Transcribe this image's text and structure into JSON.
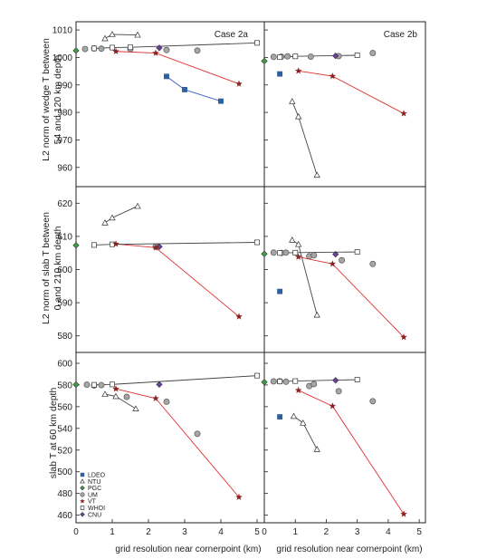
{
  "colors": {
    "LDEO": "#2f5f9e",
    "NTU": "#ffffff",
    "PGC": "#3f9e3f",
    "UM": "#a6a6a6",
    "VT": "#8a1f1f",
    "WHOI": "#ffffff",
    "CNU": "#6b3fa0",
    "line_LDEO": "#3b5fc0",
    "line_NTU": "#444444",
    "line_VT": "#e03030",
    "line_WHOI": "#444444",
    "line_CNU": "#444444"
  },
  "legend": [
    "LDEO",
    "NTU",
    "PGC",
    "UM",
    "VT",
    "WHOI",
    "CNU"
  ],
  "x_axis_label": "grid resolution near cornerpoint (km)",
  "x_ticks": [
    0,
    1,
    2,
    3,
    4,
    5
  ],
  "row_ylabels": [
    [
      "L2 norm of wedge T between",
      "54 and 120 km depth"
    ],
    [
      "L2 norm of slab T between",
      "0 and 210 km depth"
    ],
    [
      "slab T at 60 km depth"
    ]
  ],
  "columns": [
    "Case 2a",
    "Case 2b"
  ],
  "chart_data": [
    {
      "type": "scatter",
      "row": 0,
      "col": 0,
      "case": "Case 2a",
      "ylabel": "L2 norm of wedge T between 54 and 120 km depth",
      "xlim": [
        0,
        5.2
      ],
      "ylim": [
        953,
        1013
      ],
      "yticks": [
        960,
        970,
        980,
        990,
        1000,
        1010
      ],
      "series": [
        {
          "name": "LDEO",
          "marker": "square",
          "line": true,
          "points": [
            [
              2.5,
              993.1
            ],
            [
              3.0,
              988.3
            ],
            [
              4.0,
              984.1
            ]
          ]
        },
        {
          "name": "NTU",
          "marker": "triangle",
          "line": true,
          "points": [
            [
              0.8,
              1006.9
            ],
            [
              1.0,
              1008.4
            ],
            [
              1.7,
              1008.2
            ]
          ]
        },
        {
          "name": "PGC",
          "marker": "diamond",
          "line": false,
          "points": [
            [
              0.0,
              1002.5
            ]
          ]
        },
        {
          "name": "UM",
          "marker": "circle",
          "line": false,
          "points": [
            [
              0.25,
              1003.1
            ],
            [
              0.5,
              1003.3
            ],
            [
              0.7,
              1003.2
            ],
            [
              1.5,
              1003.1
            ],
            [
              2.5,
              1002.7
            ],
            [
              3.35,
              1002.5
            ]
          ]
        },
        {
          "name": "VT",
          "marker": "star",
          "line": true,
          "points": [
            [
              1.1,
              1002.2
            ],
            [
              2.2,
              1001.6
            ],
            [
              4.5,
              990.4
            ]
          ]
        },
        {
          "name": "WHOI",
          "marker": "square",
          "line": true,
          "points": [
            [
              0.5,
              1003.3
            ],
            [
              1.0,
              1003.6
            ],
            [
              1.5,
              1003.7
            ],
            [
              5.0,
              1005.3
            ]
          ]
        },
        {
          "name": "CNU",
          "marker": "diamond",
          "line": false,
          "points": [
            [
              2.3,
              1003.5
            ]
          ]
        }
      ]
    },
    {
      "type": "scatter",
      "row": 0,
      "col": 1,
      "case": "Case 2b",
      "ylabel": "L2 norm of wedge T between 54 and 120 km depth",
      "xlim": [
        0,
        5.2
      ],
      "ylim": [
        953,
        1013
      ],
      "yticks": [
        960,
        970,
        980,
        990,
        1000,
        1010
      ],
      "series": [
        {
          "name": "LDEO",
          "marker": "square",
          "line": false,
          "points": [
            [
              0.5,
              994.0
            ]
          ]
        },
        {
          "name": "NTU",
          "marker": "triangle",
          "line": true,
          "points": [
            [
              0.9,
              984.0
            ],
            [
              1.1,
              978.5
            ],
            [
              1.7,
              957.2
            ]
          ]
        },
        {
          "name": "PGC",
          "marker": "diamond",
          "line": false,
          "points": [
            [
              0.0,
              998.7
            ]
          ]
        },
        {
          "name": "UM",
          "marker": "circle",
          "line": false,
          "points": [
            [
              0.3,
              1000.2
            ],
            [
              0.55,
              1000.3
            ],
            [
              0.75,
              1000.4
            ],
            [
              1.5,
              1000.3
            ],
            [
              2.4,
              1000.5
            ],
            [
              3.5,
              1001.6
            ]
          ]
        },
        {
          "name": "VT",
          "marker": "star",
          "line": true,
          "points": [
            [
              1.1,
              995.1
            ],
            [
              2.2,
              993.2
            ],
            [
              4.5,
              979.6
            ]
          ]
        },
        {
          "name": "WHOI",
          "marker": "square",
          "line": true,
          "points": [
            [
              0.5,
              1000.1
            ],
            [
              1.0,
              1000.4
            ],
            [
              3.0,
              1000.8
            ]
          ]
        },
        {
          "name": "CNU",
          "marker": "diamond",
          "line": false,
          "points": [
            [
              2.3,
              1000.6
            ]
          ]
        }
      ]
    },
    {
      "type": "scatter",
      "row": 1,
      "col": 0,
      "case": "Case 2a",
      "ylabel": "L2 norm of slab T between 0 and 210 km depth",
      "xlim": [
        0,
        5.2
      ],
      "ylim": [
        575,
        625
      ],
      "yticks": [
        580,
        590,
        600,
        610,
        620
      ],
      "series": [
        {
          "name": "NTU",
          "marker": "triangle",
          "line": true,
          "points": [
            [
              0.8,
              614.1
            ],
            [
              1.0,
              615.6
            ],
            [
              1.7,
              619.1
            ]
          ]
        },
        {
          "name": "PGC",
          "marker": "diamond",
          "line": false,
          "points": [
            [
              0.0,
              607.3
            ]
          ]
        },
        {
          "name": "UM",
          "marker": "circle",
          "line": false,
          "points": [
            [
              2.2,
              606.9
            ]
          ]
        },
        {
          "name": "VT",
          "marker": "star",
          "line": true,
          "points": [
            [
              1.1,
              607.7
            ],
            [
              2.2,
              606.6
            ],
            [
              4.5,
              585.8
            ]
          ]
        },
        {
          "name": "WHOI",
          "marker": "square",
          "line": true,
          "points": [
            [
              0.5,
              607.4
            ],
            [
              1.0,
              607.6
            ],
            [
              5.0,
              608.2
            ]
          ]
        },
        {
          "name": "CNU",
          "marker": "diamond",
          "line": false,
          "points": [
            [
              2.3,
              606.9
            ]
          ]
        }
      ]
    },
    {
      "type": "scatter",
      "row": 1,
      "col": 1,
      "case": "Case 2b",
      "ylabel": "L2 norm of slab T between 0 and 210 km depth",
      "xlim": [
        0,
        5.2
      ],
      "ylim": [
        575,
        625
      ],
      "yticks": [
        580,
        590,
        600,
        610,
        620
      ],
      "series": [
        {
          "name": "LDEO",
          "marker": "square",
          "line": false,
          "points": [
            [
              0.5,
              593.4
            ]
          ]
        },
        {
          "name": "NTU",
          "marker": "triangle",
          "line": true,
          "points": [
            [
              0.9,
              608.9
            ],
            [
              1.1,
              607.6
            ],
            [
              1.7,
              586.3
            ]
          ]
        },
        {
          "name": "PGC",
          "marker": "diamond",
          "line": false,
          "points": [
            [
              0.0,
              604.7
            ]
          ]
        },
        {
          "name": "UM",
          "marker": "circle",
          "line": false,
          "points": [
            [
              0.3,
              605.1
            ],
            [
              0.55,
              605.0
            ],
            [
              0.7,
              605.1
            ],
            [
              1.45,
              604.0
            ],
            [
              1.6,
              604.3
            ],
            [
              2.5,
              602.8
            ],
            [
              3.5,
              601.7
            ]
          ]
        },
        {
          "name": "VT",
          "marker": "star",
          "line": true,
          "points": [
            [
              1.1,
              603.8
            ],
            [
              2.2,
              601.7
            ],
            [
              4.5,
              579.6
            ]
          ]
        },
        {
          "name": "WHOI",
          "marker": "square",
          "line": true,
          "points": [
            [
              0.5,
              605.0
            ],
            [
              1.0,
              605.1
            ],
            [
              3.0,
              605.3
            ]
          ]
        },
        {
          "name": "CNU",
          "marker": "diamond",
          "line": false,
          "points": [
            [
              2.3,
              604.6
            ]
          ]
        }
      ]
    },
    {
      "type": "scatter",
      "row": 2,
      "col": 0,
      "case": "Case 2a",
      "ylabel": "slab T at 60 km depth",
      "xlim": [
        0,
        5.2
      ],
      "ylim": [
        453,
        610
      ],
      "yticks": [
        460,
        480,
        500,
        520,
        540,
        560,
        580,
        600
      ],
      "series": [
        {
          "name": "NTU",
          "marker": "triangle",
          "line": true,
          "points": [
            [
              0.8,
              571.5
            ],
            [
              1.1,
              569.5
            ],
            [
              1.65,
              558.1
            ]
          ]
        },
        {
          "name": "PGC",
          "marker": "diamond",
          "line": false,
          "points": [
            [
              0.0,
              580.4
            ]
          ]
        },
        {
          "name": "UM",
          "marker": "circle",
          "line": false,
          "points": [
            [
              0.3,
              580.3
            ],
            [
              0.5,
              579.6
            ],
            [
              0.7,
              579.9
            ],
            [
              1.4,
              569.0
            ],
            [
              2.5,
              564.5
            ],
            [
              3.35,
              535.0
            ]
          ]
        },
        {
          "name": "VT",
          "marker": "star",
          "line": true,
          "points": [
            [
              1.1,
              576.4
            ],
            [
              2.2,
              567.6
            ],
            [
              4.5,
              476.6
            ]
          ]
        },
        {
          "name": "WHOI",
          "marker": "square",
          "line": true,
          "points": [
            [
              0.5,
              580.2
            ],
            [
              1.0,
              580.5
            ],
            [
              5.0,
              588.6
            ]
          ]
        },
        {
          "name": "CNU",
          "marker": "diamond",
          "line": false,
          "points": [
            [
              2.3,
              580.5
            ]
          ]
        }
      ]
    },
    {
      "type": "scatter",
      "row": 2,
      "col": 1,
      "case": "Case 2b",
      "ylabel": "slab T at 60 km depth",
      "xlim": [
        0,
        5.2
      ],
      "ylim": [
        453,
        610
      ],
      "yticks": [
        460,
        480,
        500,
        520,
        540,
        560,
        580,
        600
      ],
      "series": [
        {
          "name": "LDEO",
          "marker": "square",
          "line": false,
          "points": [
            [
              0.5,
              550.6
            ]
          ]
        },
        {
          "name": "NTU",
          "marker": "triangle",
          "line": true,
          "points": [
            [
              0.95,
              551.2
            ],
            [
              1.25,
              545.0
            ],
            [
              1.7,
              520.7
            ]
          ]
        },
        {
          "name": "PGC",
          "marker": "diamond",
          "line": false,
          "points": [
            [
              0.0,
              582.7
            ]
          ]
        },
        {
          "name": "UM",
          "marker": "circle",
          "line": false,
          "points": [
            [
              0.3,
              583.3
            ],
            [
              0.5,
              583.4
            ],
            [
              0.7,
              583.0
            ],
            [
              1.45,
              579.0
            ],
            [
              1.6,
              580.8
            ],
            [
              2.4,
              574.2
            ],
            [
              3.5,
              565.1
            ]
          ]
        },
        {
          "name": "VT",
          "marker": "star",
          "line": true,
          "points": [
            [
              1.1,
              575.1
            ],
            [
              2.2,
              560.5
            ],
            [
              4.5,
              461.0
            ]
          ]
        },
        {
          "name": "WHOI",
          "marker": "square",
          "line": true,
          "points": [
            [
              0.5,
              583.2
            ],
            [
              1.0,
              583.6
            ],
            [
              3.0,
              584.9
            ]
          ]
        },
        {
          "name": "CNU",
          "marker": "diamond",
          "line": false,
          "points": [
            [
              2.3,
              584.3
            ]
          ]
        }
      ]
    }
  ]
}
